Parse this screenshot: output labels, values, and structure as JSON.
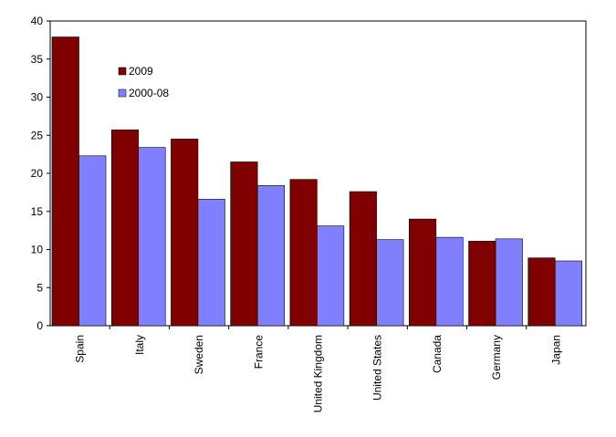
{
  "chart_data": {
    "type": "bar",
    "title": "",
    "xlabel": "",
    "ylabel": "",
    "categories": [
      "Spain",
      "Italy",
      "Sweden",
      "France",
      "United Kingdom",
      "United States",
      "Canada",
      "Germany",
      "Japan"
    ],
    "series": [
      {
        "name": "2009",
        "color": "#800000",
        "values": [
          37.9,
          25.7,
          24.5,
          21.5,
          19.2,
          17.6,
          14.0,
          11.1,
          8.9
        ]
      },
      {
        "name": "2000-08",
        "color": "#8080FF",
        "values": [
          22.3,
          23.4,
          16.6,
          18.4,
          13.1,
          11.3,
          11.6,
          11.4,
          8.5
        ]
      }
    ],
    "ylim": [
      0,
      40
    ],
    "yticks": [
      0,
      5,
      10,
      15,
      20,
      25,
      30,
      35,
      40
    ],
    "grid": false,
    "legend_position": "top-left"
  }
}
